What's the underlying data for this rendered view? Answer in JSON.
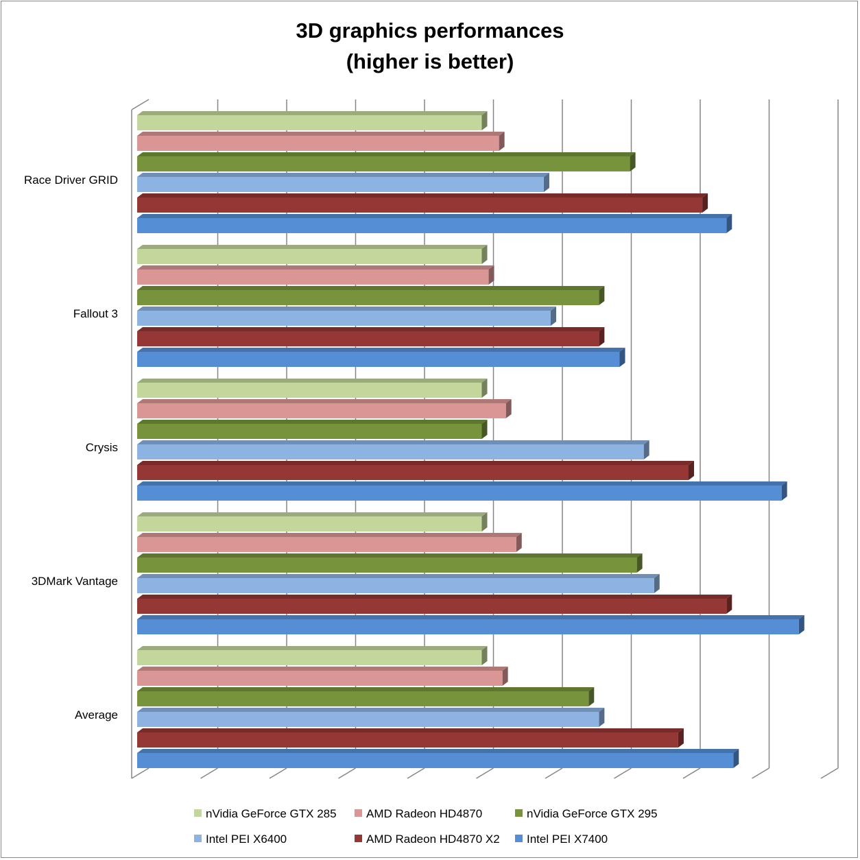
{
  "chart_data": {
    "type": "bar",
    "orientation": "horizontal",
    "style": "3d-clustered",
    "title": "3D graphics performances",
    "subtitle": "(higher is better)",
    "categories": [
      "Race Driver GRID",
      "Fallout 3",
      "Crysis",
      "3DMark Vantage",
      "Average"
    ],
    "xlim": [
      0,
      2.0
    ],
    "x_tick_labels_shown": false,
    "grid": true,
    "legend_position": "bottom",
    "series": [
      {
        "name": "nVidia GeForce GTX 285",
        "color": "#c3d69b",
        "values": [
          1.0,
          1.0,
          1.0,
          1.0,
          1.0
        ]
      },
      {
        "name": "AMD Radeon  HD4870",
        "color": "#d99694",
        "values": [
          1.05,
          1.02,
          1.07,
          1.1,
          1.06
        ]
      },
      {
        "name": "nVidia GeForce GTX 295",
        "color": "#77933c",
        "values": [
          1.43,
          1.34,
          1.0,
          1.45,
          1.31
        ]
      },
      {
        "name": "Intel PEI X6400",
        "color": "#8db3e2",
        "values": [
          1.18,
          1.2,
          1.47,
          1.5,
          1.34
        ]
      },
      {
        "name": "AMD Radeon  HD4870 X2",
        "color": "#953735",
        "values": [
          1.64,
          1.34,
          1.6,
          1.71,
          1.57
        ]
      },
      {
        "name": "Intel PEI X7400",
        "color": "#558ed5",
        "values": [
          1.71,
          1.4,
          1.87,
          1.92,
          1.73
        ]
      }
    ]
  }
}
